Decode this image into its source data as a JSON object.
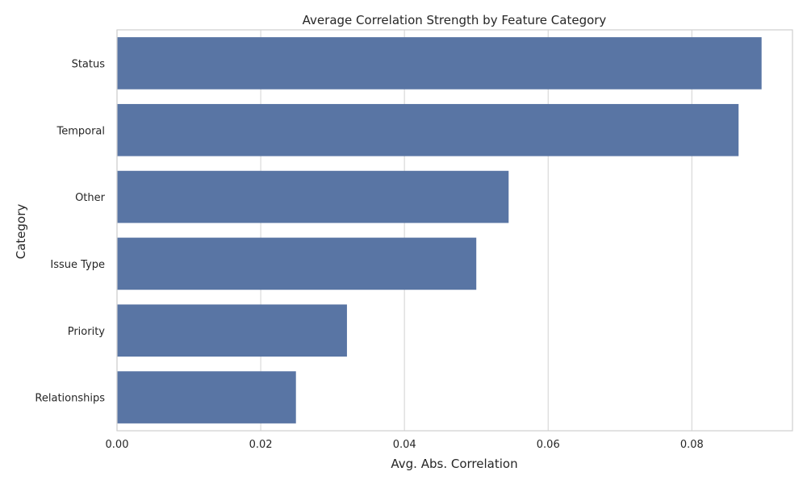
{
  "chart_data": {
    "type": "bar",
    "orientation": "horizontal",
    "title": "Average Correlation Strength by Feature Category",
    "xlabel": "Avg. Abs. Correlation",
    "ylabel": "Category",
    "categories": [
      "Status",
      "Temporal",
      "Other",
      "Issue Type",
      "Priority",
      "Relationships"
    ],
    "values": [
      0.0897,
      0.0865,
      0.0545,
      0.05,
      0.032,
      0.0249
    ],
    "xlim": [
      0,
      0.094
    ],
    "xticks": [
      "0.00",
      "0.02",
      "0.04",
      "0.06",
      "0.08"
    ],
    "grid": true,
    "legend": "none",
    "colors": {
      "bar": "#5975a4",
      "grid": "#d9d9d9",
      "frame": "#cfcfcf",
      "text": "#262626"
    }
  }
}
